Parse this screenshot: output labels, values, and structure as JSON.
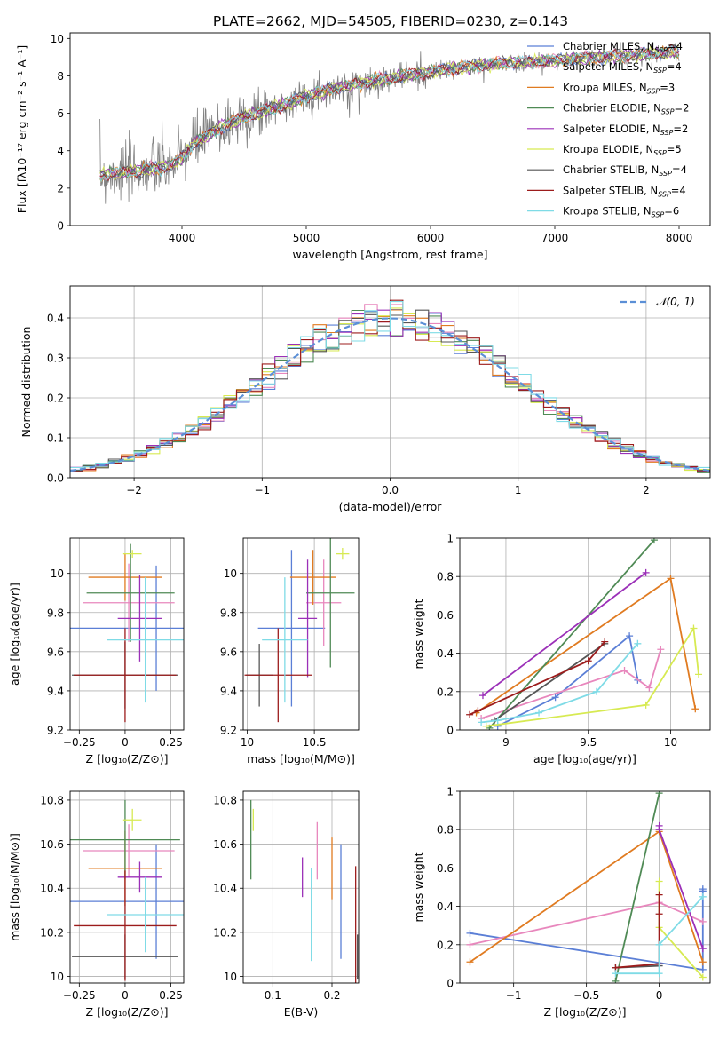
{
  "figure_title": "PLATE=2662, MJD=54505, FIBERID=0230, z=0.143",
  "colors": {
    "Chabrier MILES": "#5b7fd6",
    "Salpeter MILES": "#e887bd",
    "Kroupa MILES": "#e07b21",
    "Chabrier ELODIE": "#4f8a55",
    "Salpeter ELODIE": "#9b30b8",
    "Kroupa ELODIE": "#d7ea52",
    "Chabrier STELIB": "#555555",
    "Salpeter STELIB": "#9c1c1c",
    "Kroupa STELIB": "#7fdbe6",
    "data": "#808080",
    "normal": "#5b8fd6"
  },
  "chart_data": [
    {
      "id": "spectrum",
      "type": "line",
      "xlabel": "wavelength [Angstrom, rest frame]",
      "ylabel": "Flux [fλ10⁻¹⁷ erg cm⁻² s⁻¹ A⁻¹]",
      "xlim": [
        3100,
        8250
      ],
      "ylim": [
        0,
        10.3
      ],
      "xticks": [
        4000,
        5000,
        6000,
        7000,
        8000
      ],
      "yticks": [
        0,
        2,
        4,
        6,
        8,
        10
      ],
      "legend_placement": "upper-right",
      "legend": [
        {
          "label": "Chabrier MILES, N",
          "sub": "SSP",
          "tail": "=4"
        },
        {
          "label": "Salpeter MILES, N",
          "sub": "SSP",
          "tail": "=4"
        },
        {
          "label": "Kroupa MILES, N",
          "sub": "SSP",
          "tail": "=3"
        },
        {
          "label": "Chabrier ELODIE, N",
          "sub": "SSP",
          "tail": "=2"
        },
        {
          "label": "Salpeter ELODIE, N",
          "sub": "SSP",
          "tail": "=2"
        },
        {
          "label": "Kroupa ELODIE, N",
          "sub": "SSP",
          "tail": "=5"
        },
        {
          "label": "Chabrier STELIB, N",
          "sub": "SSP",
          "tail": "=4"
        },
        {
          "label": "Salpeter STELIB, N",
          "sub": "SSP",
          "tail": "=4"
        },
        {
          "label": "Kroupa STELIB, N",
          "sub": "SSP",
          "tail": "=6"
        }
      ],
      "continuum": {
        "x": [
          3340,
          3500,
          3700,
          3900,
          4000,
          4100,
          4300,
          4500,
          4800,
          5000,
          5200,
          5500,
          5800,
          6000,
          6300,
          6600,
          7000,
          7300,
          7600,
          7800,
          8000
        ],
        "y": [
          2.7,
          2.8,
          3.0,
          3.2,
          3.6,
          4.4,
          5.2,
          5.8,
          6.4,
          6.9,
          7.3,
          7.7,
          8.0,
          8.2,
          8.5,
          8.7,
          8.8,
          9.0,
          9.1,
          9.2,
          9.3
        ]
      }
    },
    {
      "id": "residuals",
      "type": "histogram",
      "xlabel": "(data-model)/error",
      "ylabel": "Normed distribution",
      "xlim": [
        -2.5,
        2.5
      ],
      "ylim": [
        0,
        0.48
      ],
      "xticks": [
        -2,
        -1,
        0,
        1,
        2
      ],
      "yticks": [
        0.0,
        0.1,
        0.2,
        0.3,
        0.4
      ],
      "grid": true,
      "legend_placement": "upper-right",
      "legend": [
        {
          "label": "𝒩(0, 1)",
          "style": "dashed"
        }
      ],
      "bin_width": 0.1
    },
    {
      "id": "age-vs-Z",
      "type": "errorbar",
      "xlabel": "Z [log₁₀(Z/Z⊙)]",
      "ylabel": "age  [log₁₀(age/yr)]",
      "xlim": [
        -0.3,
        0.32
      ],
      "ylim": [
        9.2,
        10.18
      ],
      "xticks": [
        -0.25,
        0.0,
        0.25
      ],
      "yticks": [
        9.2,
        9.4,
        9.6,
        9.8,
        10.0
      ],
      "grid": true,
      "points": [
        {
          "series": "Chabrier MILES",
          "x": 0.17,
          "y": 9.72,
          "xerr": 0.47,
          "yerr": 0.32
        },
        {
          "series": "Salpeter MILES",
          "x": 0.02,
          "y": 9.85,
          "xerr": 0.25,
          "yerr": 0.2
        },
        {
          "series": "Kroupa MILES",
          "x": 0.0,
          "y": 9.98,
          "xerr": 0.2,
          "yerr": 0.12
        },
        {
          "series": "Chabrier ELODIE",
          "x": 0.03,
          "y": 9.9,
          "xerr": 0.24,
          "yerr": 0.25
        },
        {
          "series": "Salpeter ELODIE",
          "x": 0.08,
          "y": 9.77,
          "xerr": 0.12,
          "yerr": 0.22
        },
        {
          "series": "Kroupa ELODIE",
          "x": 0.04,
          "y": 10.1,
          "xerr": 0.05,
          "yerr": 0.02
        },
        {
          "series": "Chabrier STELIB",
          "x": 0.0,
          "y": 9.48,
          "xerr": 0.29,
          "yerr": 0.17
        },
        {
          "series": "Salpeter STELIB",
          "x": 0.0,
          "y": 9.48,
          "xerr": 0.28,
          "yerr": 0.24
        },
        {
          "series": "Kroupa STELIB",
          "x": 0.11,
          "y": 9.66,
          "xerr": 0.21,
          "yerr": 0.32
        }
      ]
    },
    {
      "id": "age-vs-mass",
      "type": "errorbar",
      "xlabel": "mass [log₁₀(M/M⊙)]",
      "ylabel": "",
      "xlim": [
        9.97,
        10.83
      ],
      "ylim": [
        9.2,
        10.18
      ],
      "xticks": [
        10.0,
        10.5
      ],
      "yticks": [
        9.2,
        9.4,
        9.6,
        9.8,
        10.0
      ],
      "grid": true,
      "points": [
        {
          "series": "Chabrier MILES",
          "x": 10.33,
          "y": 9.72,
          "xerr": 0.25,
          "yerr": 0.4
        },
        {
          "series": "Salpeter MILES",
          "x": 10.57,
          "y": 9.85,
          "xerr": 0.13,
          "yerr": 0.22
        },
        {
          "series": "Kroupa MILES",
          "x": 10.49,
          "y": 9.98,
          "xerr": 0.17,
          "yerr": 0.14
        },
        {
          "series": "Chabrier ELODIE",
          "x": 10.62,
          "y": 9.9,
          "xerr": 0.18,
          "yerr": 0.38
        },
        {
          "series": "Salpeter ELODIE",
          "x": 10.45,
          "y": 9.77,
          "xerr": 0.07,
          "yerr": 0.3
        },
        {
          "series": "Kroupa ELODIE",
          "x": 10.71,
          "y": 10.1,
          "xerr": 0.05,
          "yerr": 0.03
        },
        {
          "series": "Chabrier STELIB",
          "x": 10.09,
          "y": 9.48,
          "xerr": 0.1,
          "yerr": 0.16
        },
        {
          "series": "Salpeter STELIB",
          "x": 10.23,
          "y": 9.48,
          "xerr": 0.25,
          "yerr": 0.24
        },
        {
          "series": "Kroupa STELIB",
          "x": 10.28,
          "y": 9.66,
          "xerr": 0.17,
          "yerr": 0.32
        }
      ]
    },
    {
      "id": "weight-vs-age",
      "type": "line",
      "xlabel": "age  [log₁₀(age/yr)]",
      "ylabel": "mass weight",
      "xlim": [
        8.72,
        10.24
      ],
      "ylim": [
        0.0,
        1.0
      ],
      "xticks": [
        9.0,
        9.5,
        10.0
      ],
      "yticks": [
        0.0,
        0.2,
        0.4,
        0.6,
        0.8,
        1.0
      ],
      "grid": true,
      "series": [
        {
          "name": "Chabrier MILES",
          "x": [
            8.95,
            9.3,
            9.75,
            9.8
          ],
          "y": [
            0.02,
            0.17,
            0.49,
            0.26
          ]
        },
        {
          "name": "Salpeter MILES",
          "x": [
            8.85,
            9.72,
            9.87,
            9.94
          ],
          "y": [
            0.06,
            0.31,
            0.22,
            0.42
          ]
        },
        {
          "name": "Kroupa MILES",
          "x": [
            8.82,
            10.0,
            10.15
          ],
          "y": [
            0.09,
            0.79,
            0.11
          ]
        },
        {
          "name": "Chabrier ELODIE",
          "x": [
            8.9,
            9.9
          ],
          "y": [
            0.01,
            0.99
          ]
        },
        {
          "name": "Salpeter ELODIE",
          "x": [
            8.86,
            9.85
          ],
          "y": [
            0.18,
            0.82
          ]
        },
        {
          "name": "Kroupa ELODIE",
          "x": [
            8.88,
            9.85,
            10.14,
            10.17
          ],
          "y": [
            0.02,
            0.13,
            0.53,
            0.29
          ]
        },
        {
          "name": "Chabrier STELIB",
          "x": [
            8.93,
            9.6
          ],
          "y": [
            0.05,
            0.45
          ]
        },
        {
          "name": "Salpeter STELIB",
          "x": [
            8.78,
            8.83,
            9.5,
            9.6
          ],
          "y": [
            0.08,
            0.1,
            0.36,
            0.46
          ]
        },
        {
          "name": "Kroupa STELIB",
          "x": [
            8.85,
            8.95,
            9.2,
            9.55,
            9.8
          ],
          "y": [
            0.04,
            0.05,
            0.09,
            0.2,
            0.45
          ]
        }
      ]
    },
    {
      "id": "mass-vs-Z",
      "type": "errorbar",
      "xlabel": "Z [log₁₀(Z/Z⊙)]",
      "ylabel": "mass [log₁₀(M/M⊙)]",
      "xlim": [
        -0.3,
        0.32
      ],
      "ylim": [
        9.97,
        10.84
      ],
      "xticks": [
        -0.25,
        0.0,
        0.25
      ],
      "yticks": [
        10.0,
        10.2,
        10.4,
        10.6,
        10.8
      ],
      "grid": true,
      "points": [
        {
          "series": "Chabrier MILES",
          "x": 0.17,
          "y": 10.34,
          "xerr": 0.47,
          "yerr": 0.26
        },
        {
          "series": "Salpeter MILES",
          "x": 0.02,
          "y": 10.57,
          "xerr": 0.25,
          "yerr": 0.12
        },
        {
          "series": "Kroupa MILES",
          "x": 0.0,
          "y": 10.49,
          "xerr": 0.2,
          "yerr": 0.17
        },
        {
          "series": "Chabrier ELODIE",
          "x": 0.0,
          "y": 10.62,
          "xerr": 0.3,
          "yerr": 0.18
        },
        {
          "series": "Salpeter ELODIE",
          "x": 0.08,
          "y": 10.45,
          "xerr": 0.12,
          "yerr": 0.07
        },
        {
          "series": "Kroupa ELODIE",
          "x": 0.04,
          "y": 10.71,
          "xerr": 0.05,
          "yerr": 0.05
        },
        {
          "series": "Chabrier STELIB",
          "x": 0.0,
          "y": 10.09,
          "xerr": 0.29,
          "yerr": 0.1
        },
        {
          "series": "Salpeter STELIB",
          "x": 0.0,
          "y": 10.23,
          "xerr": 0.28,
          "yerr": 0.25
        },
        {
          "series": "Kroupa STELIB",
          "x": 0.11,
          "y": 10.28,
          "xerr": 0.21,
          "yerr": 0.17
        }
      ]
    },
    {
      "id": "mass-vs-EBV",
      "type": "errorbar",
      "xlabel": "E(B-V)",
      "ylabel": "",
      "xlim": [
        0.05,
        0.245
      ],
      "ylim": [
        9.97,
        10.84
      ],
      "xticks": [
        0.1,
        0.2
      ],
      "yticks": [
        10.0,
        10.2,
        10.4,
        10.6,
        10.8
      ],
      "grid": true,
      "points": [
        {
          "series": "Chabrier MILES",
          "x": 0.215,
          "y": 10.34,
          "xerr": 0,
          "yerr": 0.26
        },
        {
          "series": "Salpeter MILES",
          "x": 0.175,
          "y": 10.57,
          "xerr": 0,
          "yerr": 0.13
        },
        {
          "series": "Kroupa MILES",
          "x": 0.2,
          "y": 10.49,
          "xerr": 0,
          "yerr": 0.14
        },
        {
          "series": "Chabrier ELODIE",
          "x": 0.063,
          "y": 10.62,
          "xerr": 0,
          "yerr": 0.18
        },
        {
          "series": "Salpeter ELODIE",
          "x": 0.15,
          "y": 10.45,
          "xerr": 0,
          "yerr": 0.09
        },
        {
          "series": "Kroupa ELODIE",
          "x": 0.067,
          "y": 10.71,
          "xerr": 0,
          "yerr": 0.05
        },
        {
          "series": "Chabrier STELIB",
          "x": 0.243,
          "y": 10.09,
          "xerr": 0,
          "yerr": 0.1
        },
        {
          "series": "Salpeter STELIB",
          "x": 0.24,
          "y": 10.23,
          "xerr": 0,
          "yerr": 0.27
        },
        {
          "series": "Kroupa STELIB",
          "x": 0.165,
          "y": 10.28,
          "xerr": 0,
          "yerr": 0.21
        }
      ]
    },
    {
      "id": "weight-vs-Z",
      "type": "line",
      "xlabel": "Z [log₁₀(Z/Z⊙)]",
      "ylabel": "mass weight",
      "xlim": [
        -1.37,
        0.35
      ],
      "ylim": [
        0.0,
        1.0
      ],
      "xticks": [
        -1.0,
        -0.5,
        0.0
      ],
      "yticks": [
        0.0,
        0.2,
        0.4,
        0.6,
        0.8,
        1.0
      ],
      "grid": true,
      "series": [
        {
          "name": "Chabrier MILES",
          "x": [
            -1.3,
            0.3,
            0.3,
            0.3
          ],
          "y": [
            0.26,
            0.07,
            0.48,
            0.49
          ]
        },
        {
          "name": "Salpeter MILES",
          "x": [
            -1.3,
            0.0,
            0.3
          ],
          "y": [
            0.2,
            0.42,
            0.32
          ]
        },
        {
          "name": "Kroupa MILES",
          "x": [
            -1.3,
            0.0,
            0.3
          ],
          "y": [
            0.11,
            0.79,
            0.11
          ]
        },
        {
          "name": "Chabrier ELODIE",
          "x": [
            -0.3,
            0.0
          ],
          "y": [
            0.01,
            0.99
          ]
        },
        {
          "name": "Salpeter ELODIE",
          "x": [
            0.0,
            0.0,
            0.3
          ],
          "y": [
            0.82,
            0.8,
            0.18
          ]
        },
        {
          "name": "Kroupa ELODIE",
          "x": [
            0.0,
            0.0,
            0.3
          ],
          "y": [
            0.53,
            0.29,
            0.03
          ]
        },
        {
          "name": "Chabrier STELIB",
          "x": [
            -0.3,
            0.0
          ],
          "y": [
            0.08,
            0.09
          ]
        },
        {
          "name": "Salpeter STELIB",
          "x": [
            -0.3,
            0.0,
            0.0,
            0.0
          ],
          "y": [
            0.08,
            0.1,
            0.36,
            0.46
          ]
        },
        {
          "name": "Kroupa STELIB",
          "x": [
            -0.3,
            0.0,
            0.0,
            0.3
          ],
          "y": [
            0.05,
            0.05,
            0.2,
            0.45
          ]
        }
      ]
    }
  ]
}
